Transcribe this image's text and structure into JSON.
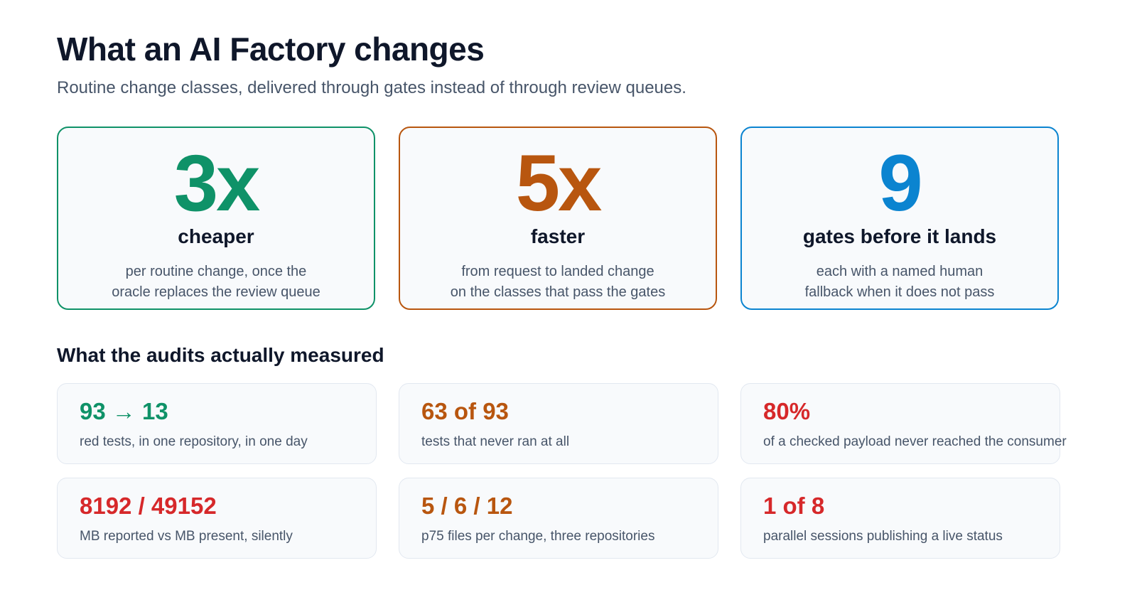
{
  "header": {
    "title": "What an AI Factory changes",
    "subtitle": "Routine change classes, delivered through gates instead of through review queues."
  },
  "colors": {
    "green": "#0f9268",
    "orange": "#b8560f",
    "blue": "#0b84d0",
    "red": "#d6282a"
  },
  "hero_cards": [
    {
      "value": "3x",
      "label": "cheaper",
      "desc_line1": "per routine change, once the",
      "desc_line2": "oracle replaces the review queue",
      "color": "#0f9268"
    },
    {
      "value": "5x",
      "label": "faster",
      "desc_line1": "from request to landed change",
      "desc_line2": "on the classes that pass the gates",
      "color": "#b8560f"
    },
    {
      "value": "9",
      "label": "gates before it lands",
      "desc_line1": "each with a named human",
      "desc_line2": "fallback when it does not pass",
      "color": "#0b84d0"
    }
  ],
  "audits": {
    "title": "What the audits actually measured",
    "items": [
      {
        "value": "93 → 13",
        "caption": "red tests, in one repository, in one day",
        "color": "#0f9268"
      },
      {
        "value": "63 of 93",
        "caption": "tests that never ran at all",
        "color": "#b8560f"
      },
      {
        "value": "80%",
        "caption": "of a checked payload never reached the consumer",
        "color": "#d6282a"
      },
      {
        "value": "8192 / 49152",
        "caption": "MB reported vs MB present, silently",
        "color": "#d6282a"
      },
      {
        "value": "5 / 6 / 12",
        "caption": "p75 files per change, three repositories",
        "color": "#b8560f"
      },
      {
        "value": "1 of 8",
        "caption": "parallel sessions publishing a live status",
        "color": "#d6282a"
      }
    ]
  }
}
